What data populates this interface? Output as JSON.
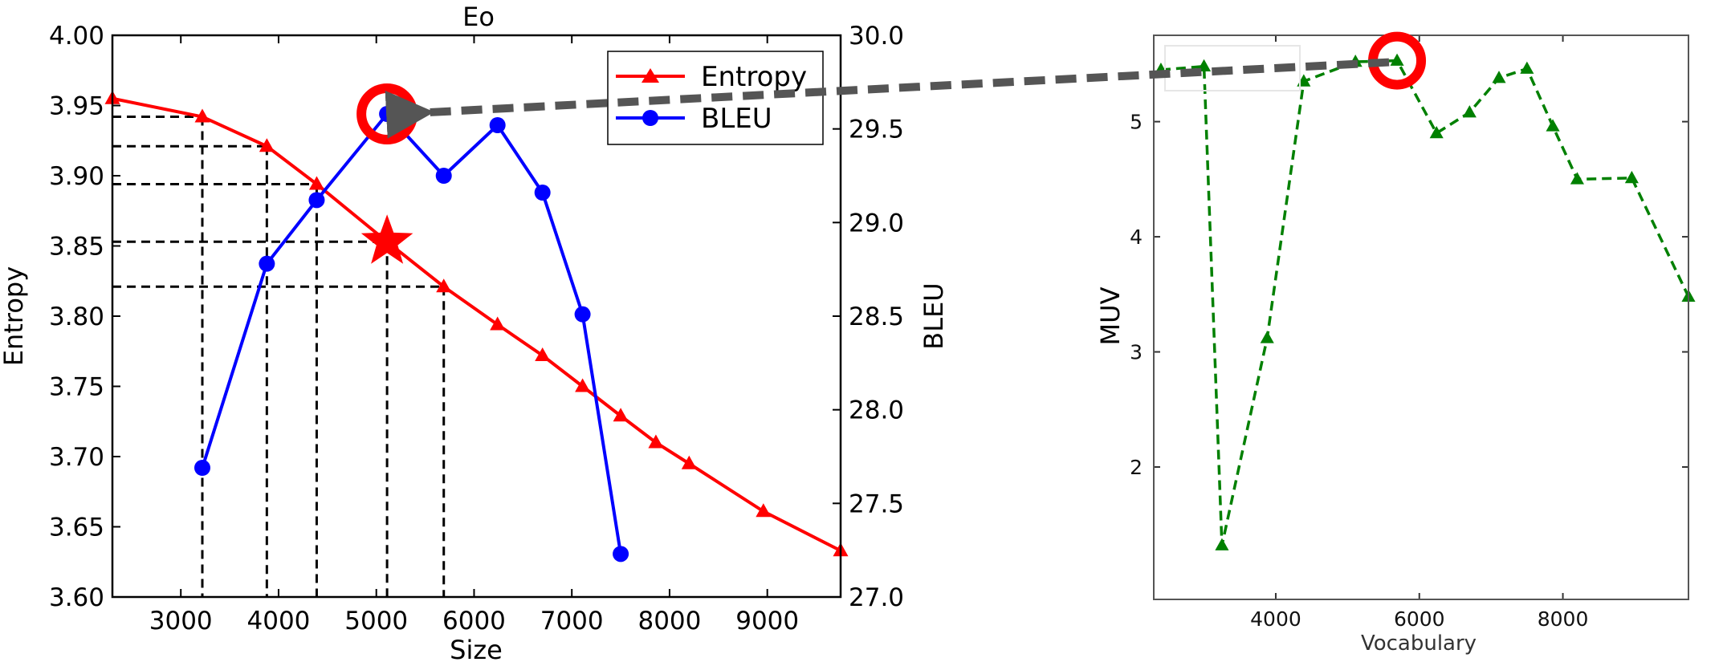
{
  "chart_data": [
    {
      "type": "line",
      "title": "Eo",
      "xlabel": "Size",
      "ylabel_left": "Entropy",
      "ylabel_right": "BLEU",
      "xlim": [
        2300,
        9750
      ],
      "ylim_left": [
        3.6,
        4.0
      ],
      "ylim_right": [
        27.0,
        30.0
      ],
      "x_ticks": [
        3000,
        4000,
        5000,
        6000,
        7000,
        8000,
        9000
      ],
      "y_ticks_left": [
        "3.60",
        "3.65",
        "3.70",
        "3.75",
        "3.80",
        "3.85",
        "3.90",
        "3.95",
        "4.00"
      ],
      "y_ticks_right": [
        "27.0",
        "27.5",
        "28.0",
        "28.5",
        "29.0",
        "29.5",
        "30.0"
      ],
      "legend_position": "top-right",
      "series": [
        {
          "name": "Entropy",
          "axis": "left",
          "color": "#ff0000",
          "marker": "triangle",
          "x": [
            2300,
            3220,
            3880,
            4390,
            5110,
            5690,
            6240,
            6700,
            7110,
            7500,
            7860,
            8200,
            8960,
            9750
          ],
          "y": [
            3.955,
            3.942,
            3.921,
            3.894,
            3.853,
            3.821,
            3.794,
            3.772,
            3.75,
            3.729,
            3.71,
            3.695,
            3.661,
            3.633
          ]
        },
        {
          "name": "BLEU",
          "axis": "right",
          "color": "#0000ff",
          "marker": "circle",
          "x": [
            3220,
            3880,
            4390,
            5110,
            5690,
            6240,
            6700,
            7110,
            7500
          ],
          "y": [
            27.69,
            28.78,
            29.12,
            29.58,
            29.25,
            29.52,
            29.16,
            28.51,
            27.23
          ]
        }
      ],
      "highlight_star": {
        "x": 5110,
        "y": 3.853,
        "color": "#ff0000"
      },
      "highlight_circle": {
        "x": 5110,
        "y": 29.58,
        "color": "#ff0000"
      },
      "guide_points": [
        {
          "x": 3220,
          "y": 3.942
        },
        {
          "x": 3880,
          "y": 3.921
        },
        {
          "x": 4390,
          "y": 3.894
        },
        {
          "x": 5110,
          "y": 3.853
        },
        {
          "x": 5690,
          "y": 3.821
        }
      ]
    },
    {
      "type": "line",
      "title": "",
      "xlabel": "Vocabulary",
      "ylabel": "MUV",
      "xlim": [
        2300,
        9750
      ],
      "ylim": [
        0.85,
        5.75
      ],
      "x_ticks": [
        4000,
        6000,
        8000
      ],
      "y_ticks": [
        2,
        3,
        4,
        5
      ],
      "series": [
        {
          "name": "MUV",
          "color": "#008000",
          "marker": "triangle",
          "linestyle": "dashed",
          "x": [
            2400,
            3000,
            3250,
            3880,
            4390,
            5110,
            5690,
            6240,
            6700,
            7110,
            7500,
            7860,
            8200,
            8960,
            9750
          ],
          "y": [
            5.45,
            5.48,
            1.32,
            3.12,
            5.35,
            5.52,
            5.53,
            4.9,
            5.08,
            5.38,
            5.46,
            4.96,
            4.5,
            4.51,
            3.48
          ]
        }
      ],
      "highlight_circle": {
        "x": 5690,
        "y": 5.53,
        "color": "#ff0000"
      }
    }
  ],
  "colors": {
    "entropy": "#ff0000",
    "bleu": "#0000ff",
    "muv": "#008000",
    "highlight": "#ff0000",
    "arrow": "#555555"
  }
}
